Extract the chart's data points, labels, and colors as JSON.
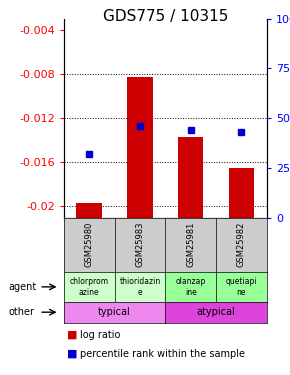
{
  "title": "GDS775 / 10315",
  "samples": [
    "GSM25980",
    "GSM25983",
    "GSM25981",
    "GSM25982"
  ],
  "log_ratios": [
    -0.0197,
    -0.0083,
    -0.0137,
    -0.0165
  ],
  "percentile_ranks": [
    32,
    46,
    44,
    43
  ],
  "agents": [
    "chlorprom\nazine",
    "thioridazin\ne",
    "olanzap\nine",
    "quetiapi\nne"
  ],
  "agent_colors": [
    "#ccffcc",
    "#ccffcc",
    "#99ff99",
    "#99ff99"
  ],
  "other_groups": [
    [
      "typical",
      2
    ],
    [
      "atypical",
      2
    ]
  ],
  "other_colors": [
    "#ee88ee",
    "#dd44dd"
  ],
  "ylim_left": [
    -0.021,
    -0.003
  ],
  "ylim_right": [
    0,
    100
  ],
  "yticks_left": [
    -0.02,
    -0.016,
    -0.012,
    -0.008,
    -0.004
  ],
  "yticks_right": [
    0,
    25,
    50,
    75,
    100
  ],
  "bar_color": "#cc0000",
  "dot_color": "#0000cc",
  "background_color": "#ffffff",
  "plot_bg": "#ffffff",
  "title_fontsize": 11,
  "tick_fontsize": 8,
  "label_fontsize": 7
}
